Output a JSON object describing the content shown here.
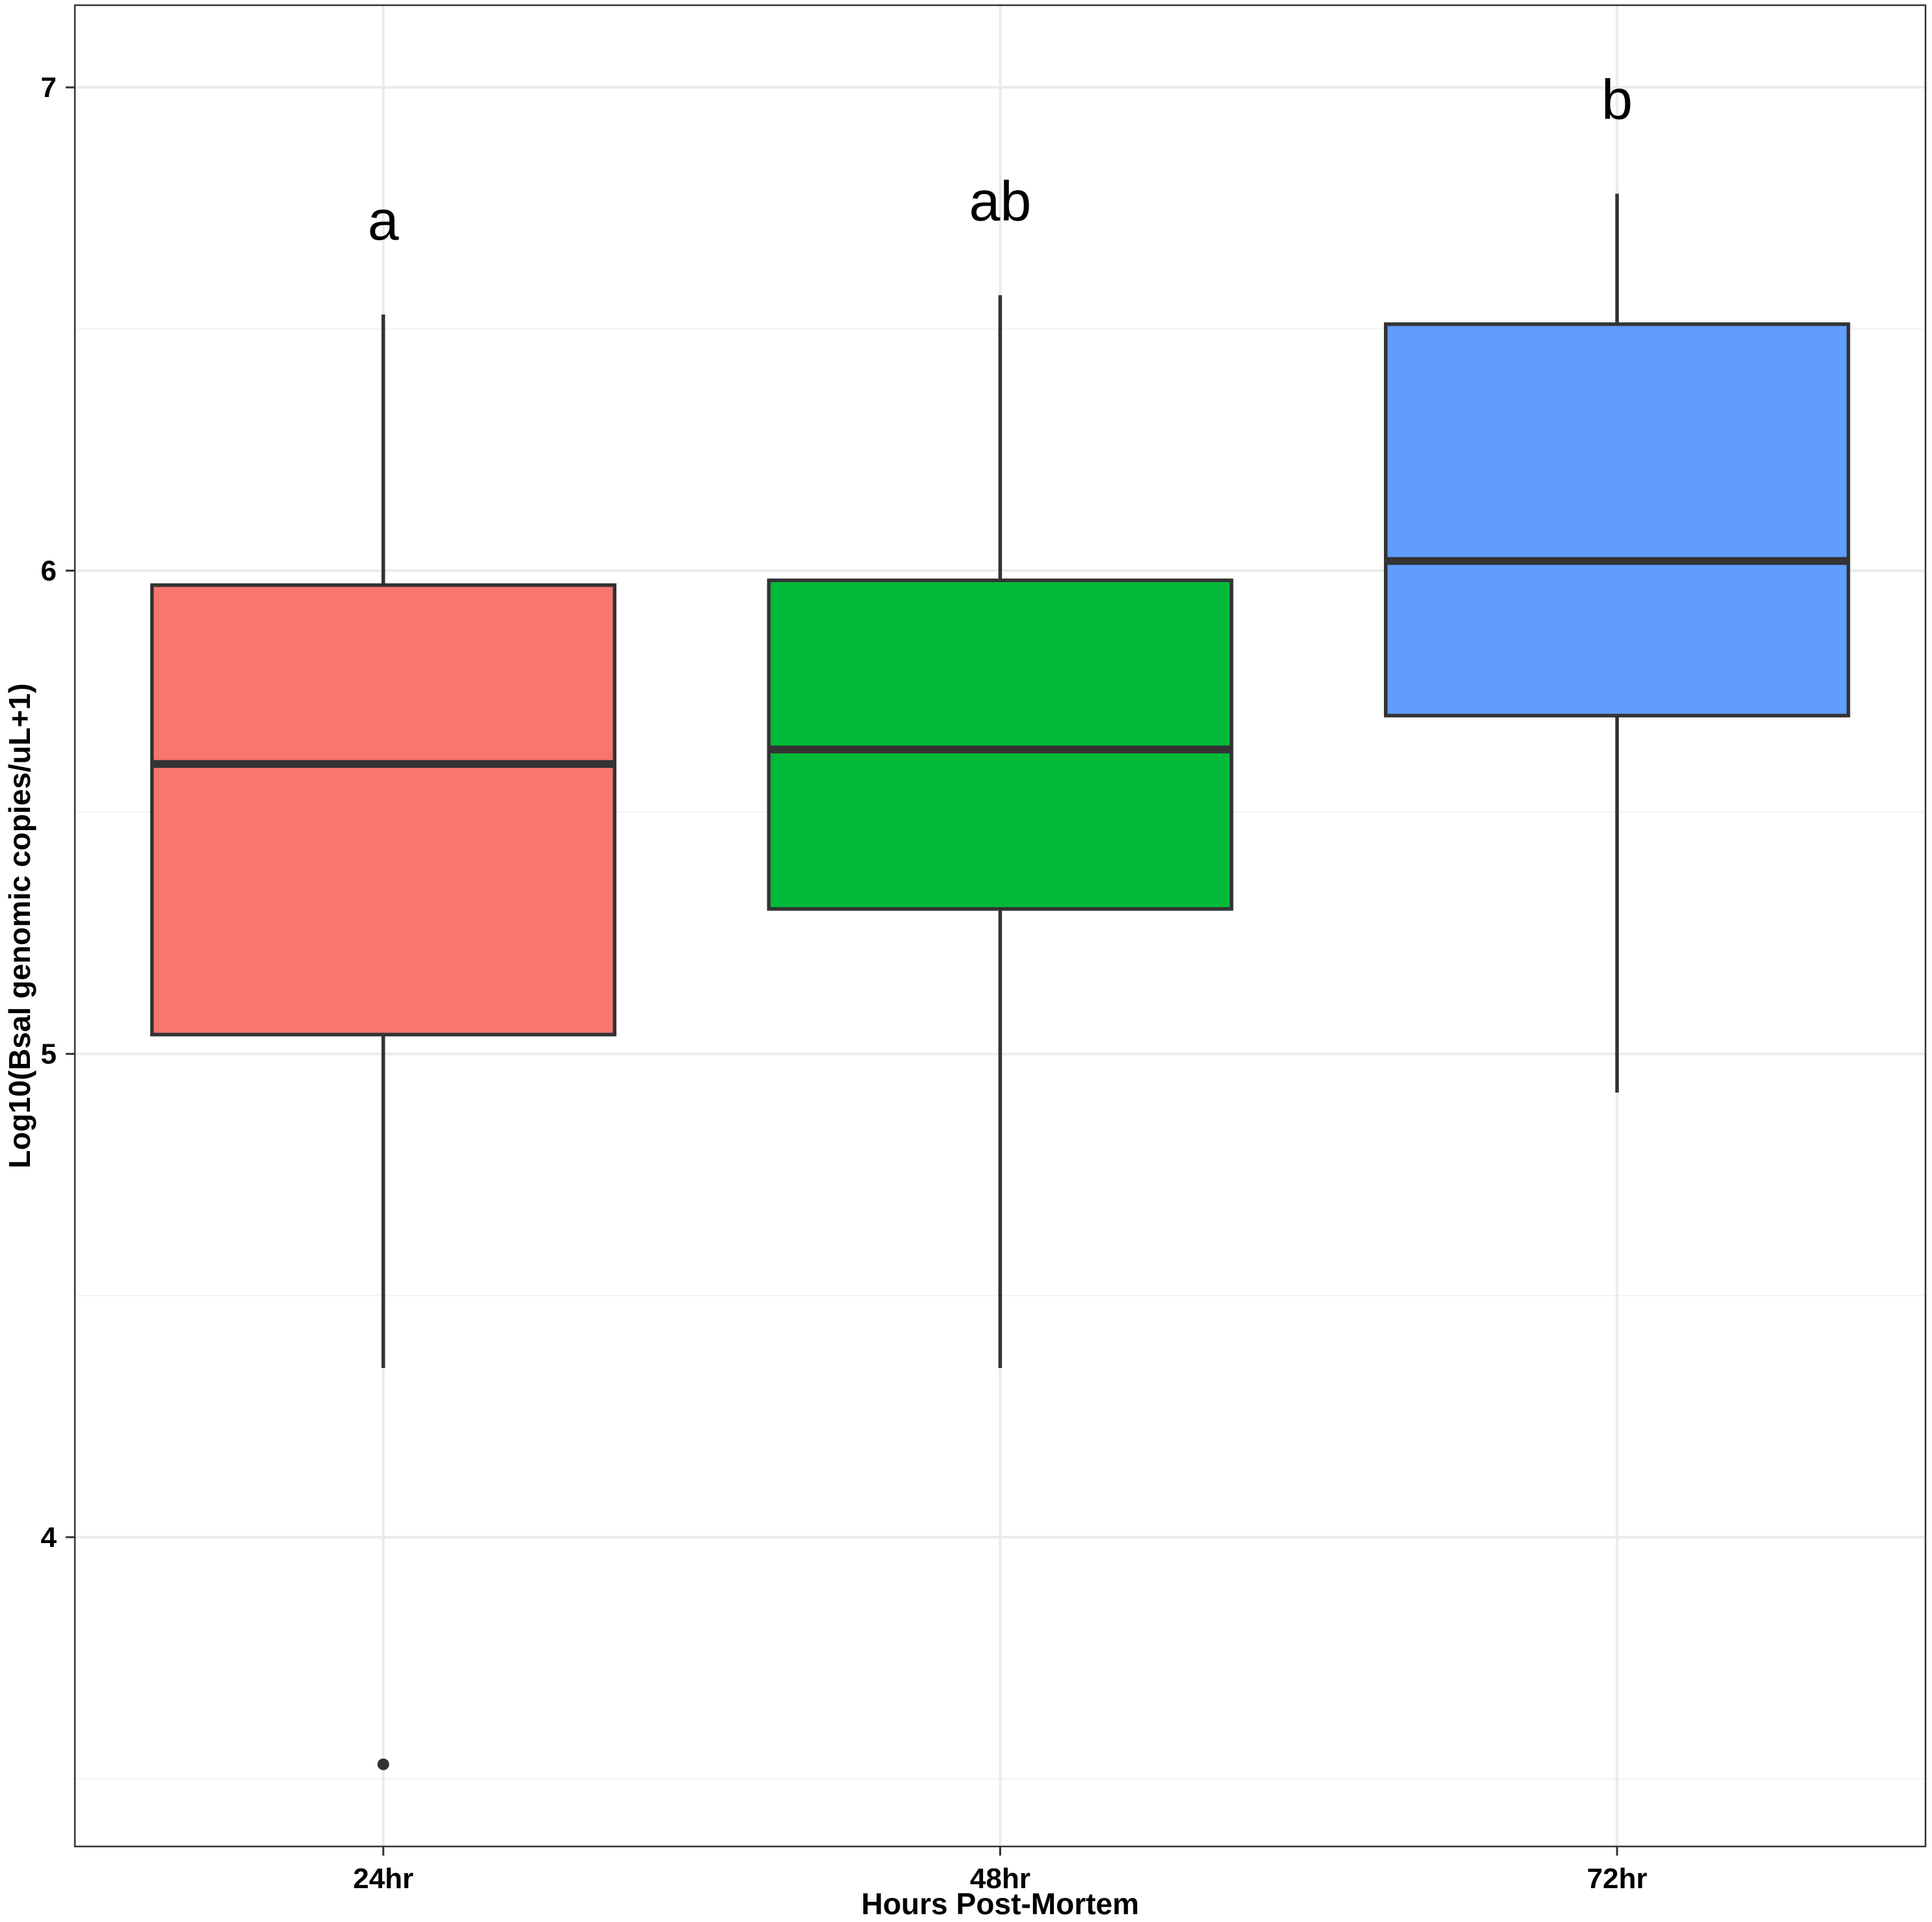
{
  "chart_data": {
    "type": "boxplot",
    "xlabel": "Hours Post-Mortem",
    "ylabel": "Log10(Bsal genomic copies/uL+1)",
    "ylim": [
      3.36,
      7.17
    ],
    "yticks": [
      4,
      5,
      6,
      7
    ],
    "grid": true,
    "legend": "none",
    "categories": [
      "24hr",
      "48hr",
      "72hr"
    ],
    "boxes": [
      {
        "category": "24hr",
        "whisker_low": 4.35,
        "q1": 5.04,
        "median": 5.6,
        "q3": 5.97,
        "whisker_high": 6.53,
        "outliers": [
          3.53
        ],
        "significance": "a",
        "color": "#F8766D"
      },
      {
        "category": "48hr",
        "whisker_low": 4.35,
        "q1": 5.3,
        "median": 5.63,
        "q3": 5.98,
        "whisker_high": 6.57,
        "outliers": [],
        "significance": "ab",
        "color": "#00BA38"
      },
      {
        "category": "72hr",
        "whisker_low": 4.92,
        "q1": 5.7,
        "median": 6.02,
        "q3": 6.51,
        "whisker_high": 6.78,
        "outliers": [],
        "significance": "b",
        "color": "#619CFF"
      }
    ]
  },
  "colors": {
    "panel_border": "#333333",
    "box_outline": "#333333",
    "grid_major": "#EBEBEB",
    "grid_minor": "#F2F2F2"
  }
}
